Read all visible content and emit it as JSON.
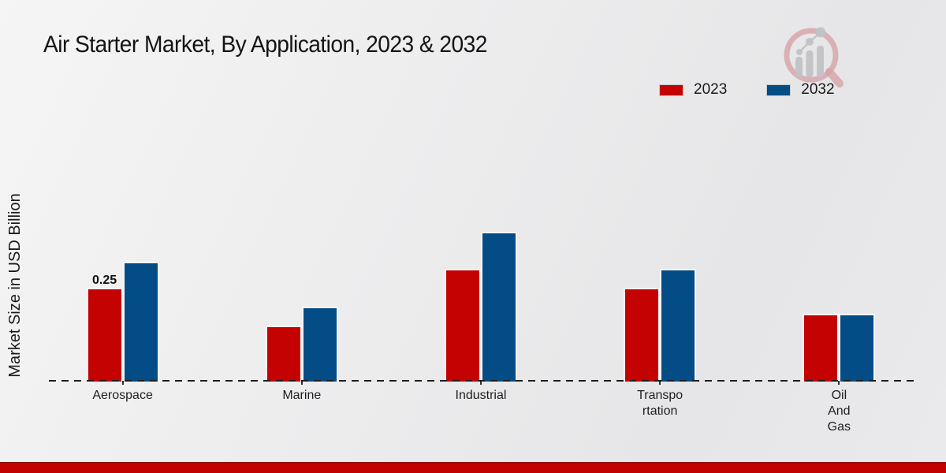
{
  "title": "Air Starter Market, By Application, 2023 & 2032",
  "ylabel": "Market Size in USD Billion",
  "chart_data": {
    "type": "bar",
    "title": "Air Starter Market, By Application, 2023 & 2032",
    "xlabel": "",
    "ylabel": "Market Size in USD Billion",
    "categories": [
      "Aerospace",
      "Marine",
      "Industrial",
      "Transportation",
      "Oil And Gas"
    ],
    "category_display": [
      "Aerospace",
      "Marine",
      "Industrial",
      "Transpo\nrtation",
      "Oil\nAnd\nGas"
    ],
    "series": [
      {
        "name": "2023",
        "color": "#c40202",
        "values": [
          0.25,
          0.15,
          0.3,
          0.25,
          0.18
        ]
      },
      {
        "name": "2032",
        "color": "#044c86",
        "values": [
          0.32,
          0.2,
          0.4,
          0.3,
          0.18
        ]
      }
    ],
    "annotations": [
      {
        "series": "2023",
        "category": "Aerospace",
        "text": "0.25"
      }
    ],
    "ylim": [
      0,
      0.45
    ],
    "grid": false,
    "legend_position": "top-right",
    "baseline_style": "dashed",
    "axis_visible": false
  },
  "branding": {
    "logo_name": "magnifier-growth-chart-logo",
    "logo_ring_color": "#d8a3a8",
    "logo_bar_color": "#c2c2c6",
    "footer_stripe_color": "#c30101",
    "footer_stripe_edge_color": "#911111"
  }
}
